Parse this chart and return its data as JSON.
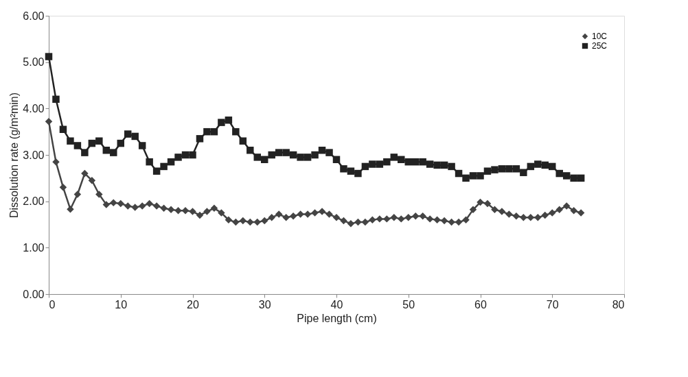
{
  "chart_data": {
    "type": "line",
    "xlabel": "Pipe length (cm)",
    "ylabel": "Dissolution rate (g/m²min)",
    "x": [
      0,
      1,
      2,
      3,
      4,
      5,
      6,
      7,
      8,
      9,
      10,
      11,
      12,
      13,
      14,
      15,
      16,
      17,
      18,
      19,
      20,
      21,
      22,
      23,
      24,
      25,
      26,
      27,
      28,
      29,
      30,
      31,
      32,
      33,
      34,
      35,
      36,
      37,
      38,
      39,
      40,
      41,
      42,
      43,
      44,
      45,
      46,
      47,
      48,
      49,
      50,
      51,
      52,
      53,
      54,
      55,
      56,
      57,
      58,
      59,
      60,
      61,
      62,
      63,
      64,
      65,
      66,
      67,
      68,
      69,
      70,
      71,
      72,
      73,
      74
    ],
    "series": [
      {
        "name": "10C",
        "color": "#444444",
        "marker": "diamond",
        "values": [
          3.72,
          2.85,
          2.3,
          1.83,
          2.15,
          2.6,
          2.45,
          2.15,
          1.93,
          1.97,
          1.95,
          1.9,
          1.87,
          1.9,
          1.95,
          1.9,
          1.85,
          1.82,
          1.8,
          1.8,
          1.78,
          1.7,
          1.78,
          1.85,
          1.75,
          1.6,
          1.55,
          1.58,
          1.55,
          1.55,
          1.58,
          1.65,
          1.72,
          1.65,
          1.68,
          1.72,
          1.72,
          1.75,
          1.78,
          1.72,
          1.65,
          1.58,
          1.52,
          1.55,
          1.55,
          1.6,
          1.62,
          1.62,
          1.65,
          1.62,
          1.65,
          1.68,
          1.68,
          1.62,
          1.6,
          1.58,
          1.55,
          1.55,
          1.6,
          1.82,
          1.98,
          1.95,
          1.82,
          1.78,
          1.72,
          1.68,
          1.65,
          1.65,
          1.65,
          1.7,
          1.75,
          1.82,
          1.9,
          1.8,
          1.75
        ]
      },
      {
        "name": "25C",
        "color": "#222222",
        "marker": "square",
        "values": [
          5.12,
          4.2,
          3.55,
          3.3,
          3.2,
          3.05,
          3.25,
          3.3,
          3.1,
          3.05,
          3.25,
          3.45,
          3.4,
          3.2,
          2.85,
          2.65,
          2.75,
          2.85,
          2.95,
          3.0,
          3.0,
          3.35,
          3.5,
          3.5,
          3.7,
          3.75,
          3.5,
          3.3,
          3.1,
          2.95,
          2.9,
          3.0,
          3.05,
          3.05,
          3.0,
          2.95,
          2.95,
          3.0,
          3.1,
          3.05,
          2.9,
          2.7,
          2.65,
          2.6,
          2.75,
          2.8,
          2.8,
          2.85,
          2.95,
          2.9,
          2.85,
          2.85,
          2.85,
          2.8,
          2.78,
          2.78,
          2.75,
          2.6,
          2.5,
          2.55,
          2.55,
          2.65,
          2.68,
          2.7,
          2.7,
          2.7,
          2.62,
          2.75,
          2.8,
          2.78,
          2.75,
          2.6,
          2.55,
          2.5,
          2.5
        ]
      }
    ],
    "xlim": [
      0,
      80
    ],
    "xticks": [
      0,
      10,
      20,
      30,
      40,
      50,
      60,
      70,
      80
    ],
    "ylim": [
      0,
      6
    ],
    "yticks": [
      {
        "value": 0,
        "label": "0.00"
      },
      {
        "value": 1,
        "label": "1.00"
      },
      {
        "value": 2,
        "label": "2.00"
      },
      {
        "value": 3,
        "label": "3.00"
      },
      {
        "value": 4,
        "label": "4.00"
      },
      {
        "value": 5,
        "label": "5.00"
      },
      {
        "value": 6,
        "label": "6.00"
      }
    ],
    "grid": false,
    "legend": "top right",
    "line_style": "solid"
  }
}
